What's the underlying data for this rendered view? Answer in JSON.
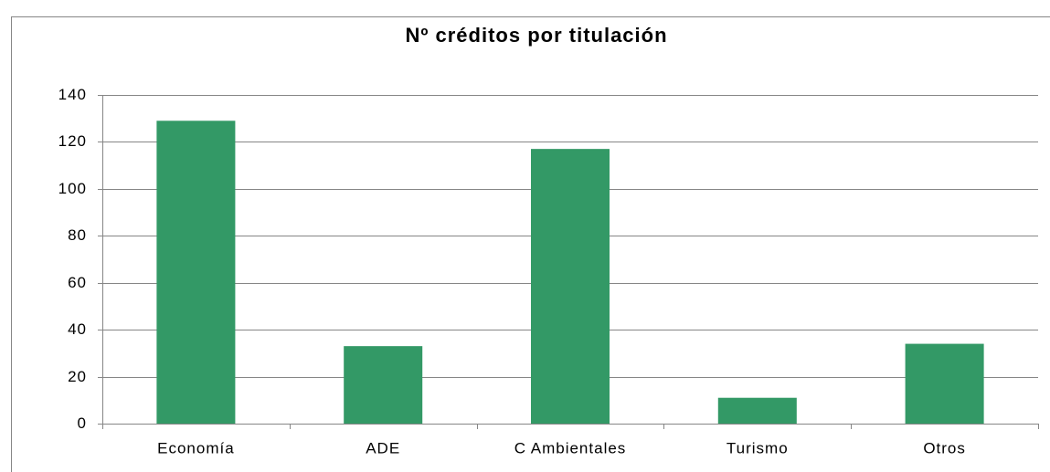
{
  "chart_data": {
    "type": "bar",
    "title": "Nº créditos por titulación",
    "categories": [
      "Economía",
      "ADE",
      "C Ambientales",
      "Turismo",
      "Otros"
    ],
    "values": [
      129,
      33,
      117,
      11,
      34
    ],
    "color": "#339966",
    "ylim": [
      0,
      140
    ],
    "yticks": [
      0,
      20,
      40,
      60,
      80,
      100,
      120,
      140
    ],
    "grid": true
  }
}
